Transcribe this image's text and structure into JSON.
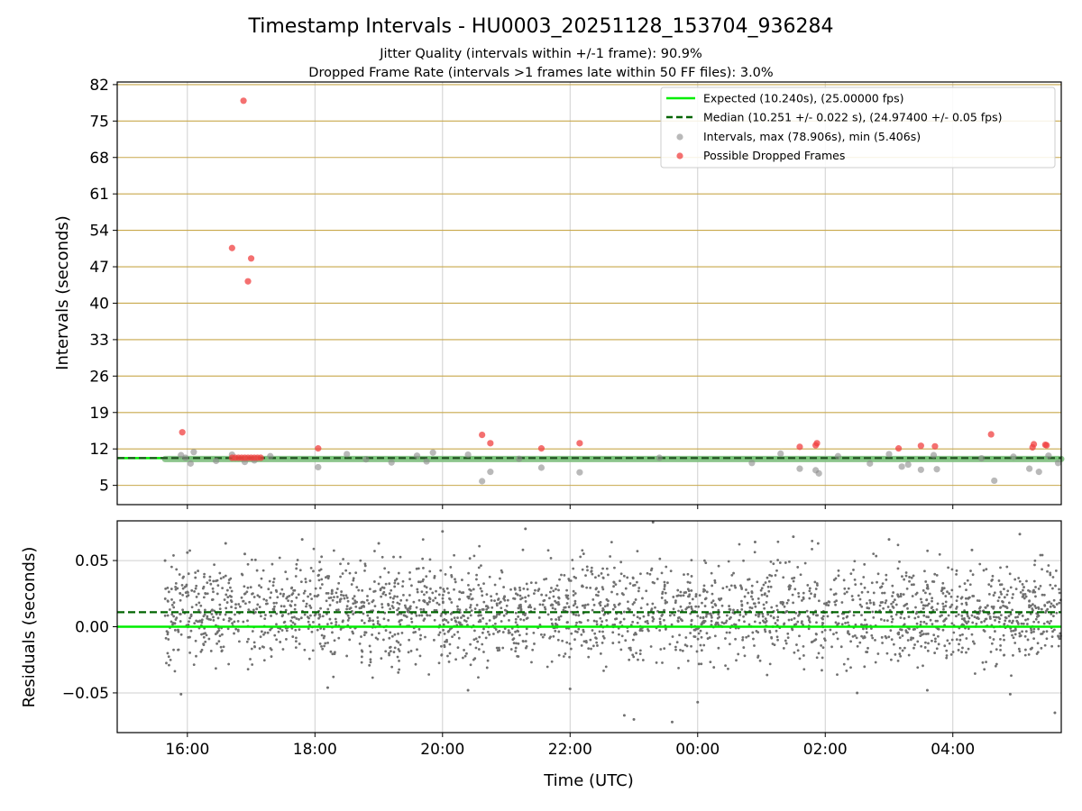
{
  "chart_data": [
    {
      "type": "scatter",
      "title": "Timestamp Intervals - HU0003_20251128_153704_936284",
      "subtitle_lines": [
        "Jitter Quality (intervals within +/-1 frame): 90.9%",
        "Dropped Frame Rate (intervals >1 frames late within 50 FF files): 3.0%"
      ],
      "xlabel": "",
      "ylabel": "Intervals (seconds)",
      "x_unit": "hours since 00:00 UTC on first day",
      "xlim": [
        14.9,
        29.7
      ],
      "ylim": [
        1.3,
        82.5
      ],
      "yticks": [
        5,
        12,
        19,
        26,
        33,
        40,
        47,
        54,
        61,
        68,
        75,
        82
      ],
      "ytick_labels": [
        "5",
        "12",
        "19",
        "26",
        "33",
        "40",
        "47",
        "54",
        "61",
        "68",
        "75",
        "82"
      ],
      "xticks": [
        16,
        18,
        20,
        22,
        24,
        26,
        28
      ],
      "grid": "on",
      "hlines_color": "#c8a84b",
      "legend_position": "top-right",
      "legend": [
        "Expected (10.240s), (25.00000 fps)",
        "Median (10.251 +/- 0.022 s), (24.97400 +/- 0.05 fps)",
        "Intervals, max (78.906s), min (5.406s)",
        "Possible Dropped Frames"
      ],
      "expected_line": 10.24,
      "median_line": 10.251,
      "series": [
        {
          "name": "Intervals, max (78.906s), min (5.406s)",
          "color": "#8a8a8a",
          "x": [
            15.9,
            15.97,
            16.05,
            16.1,
            16.45,
            16.7,
            16.9,
            17.05,
            17.3,
            18.05,
            18.5,
            18.8,
            19.2,
            19.6,
            19.75,
            19.85,
            20.4,
            20.62,
            20.75,
            21.2,
            21.55,
            22.15,
            23.4,
            24.85,
            25.3,
            25.6,
            25.85,
            25.9,
            26.2,
            26.7,
            27.0,
            27.2,
            27.3,
            27.5,
            27.7,
            27.75,
            28.45,
            28.65,
            28.95,
            29.2,
            29.35,
            29.5,
            29.65
          ],
          "y": [
            10.8,
            10.3,
            9.2,
            11.4,
            9.7,
            10.9,
            9.5,
            9.8,
            10.6,
            8.5,
            11.0,
            10.0,
            9.4,
            10.7,
            9.6,
            11.3,
            10.9,
            5.8,
            7.6,
            10.1,
            8.4,
            7.5,
            10.3,
            9.3,
            11.1,
            8.2,
            7.9,
            7.3,
            10.6,
            9.2,
            11.0,
            8.6,
            9.0,
            8.0,
            10.8,
            8.1,
            10.2,
            5.9,
            10.5,
            8.2,
            7.6,
            10.7,
            9.3
          ]
        },
        {
          "name": "Possible Dropped Frames",
          "color": "#f04040",
          "x": [
            15.92,
            16.7,
            16.75,
            16.8,
            16.85,
            16.9,
            16.95,
            17.0,
            17.05,
            17.1,
            17.15,
            16.88,
            16.95,
            17.0,
            16.7,
            18.05,
            20.62,
            20.75,
            21.55,
            22.15,
            25.6,
            25.85,
            25.87,
            27.15,
            27.5,
            27.72,
            28.6,
            29.25,
            29.45,
            29.27,
            29.47
          ],
          "y": [
            15.2,
            10.3,
            10.3,
            10.3,
            10.3,
            10.3,
            10.3,
            10.3,
            10.3,
            10.3,
            10.3,
            78.9,
            44.2,
            48.6,
            50.6,
            12.1,
            14.7,
            13.1,
            12.1,
            13.1,
            12.4,
            12.7,
            13.1,
            12.1,
            12.6,
            12.5,
            14.8,
            12.3,
            12.8,
            12.9,
            12.7
          ]
        }
      ]
    },
    {
      "type": "scatter",
      "title": "",
      "xlabel": "Time (UTC)",
      "ylabel": "Residuals (seconds)",
      "xlim": [
        14.9,
        29.7
      ],
      "ylim": [
        -0.08,
        0.08
      ],
      "yticks": [
        -0.05,
        0.0,
        0.05
      ],
      "ytick_labels": [
        "−0.05",
        "0.00",
        "0.05"
      ],
      "xticks": [
        16,
        18,
        20,
        22,
        24,
        26,
        28
      ],
      "xtick_labels": [
        "16:00",
        "18:00",
        "20:00",
        "22:00",
        "00:00",
        "02:00",
        "04:00"
      ],
      "grid": "on",
      "expected_line": 0.0,
      "median_line": 0.011,
      "residual_x_range": [
        15.65,
        29.7
      ],
      "residual_center": 0.011,
      "residual_spread": 0.022,
      "residual_point_count": 2600,
      "series": [
        {
          "name": "",
          "color": "#707070",
          "x": [
            15.65,
            15.9,
            16.0,
            16.6,
            16.9,
            17.8,
            18.2,
            19.0,
            20.0,
            20.4,
            21.3,
            22.0,
            22.85,
            23.0,
            23.3,
            23.6,
            24.0,
            24.9,
            25.5,
            26.5,
            27.0,
            27.6,
            28.3,
            28.9,
            29.05,
            29.6
          ],
          "y": [
            0.05,
            -0.051,
            0.056,
            0.063,
            0.055,
            0.066,
            -0.046,
            0.063,
            0.072,
            -0.048,
            0.074,
            -0.047,
            -0.067,
            -0.07,
            0.079,
            -0.072,
            -0.057,
            0.064,
            0.068,
            -0.05,
            0.066,
            -0.048,
            0.058,
            -0.051,
            0.07,
            -0.065
          ]
        }
      ]
    }
  ]
}
